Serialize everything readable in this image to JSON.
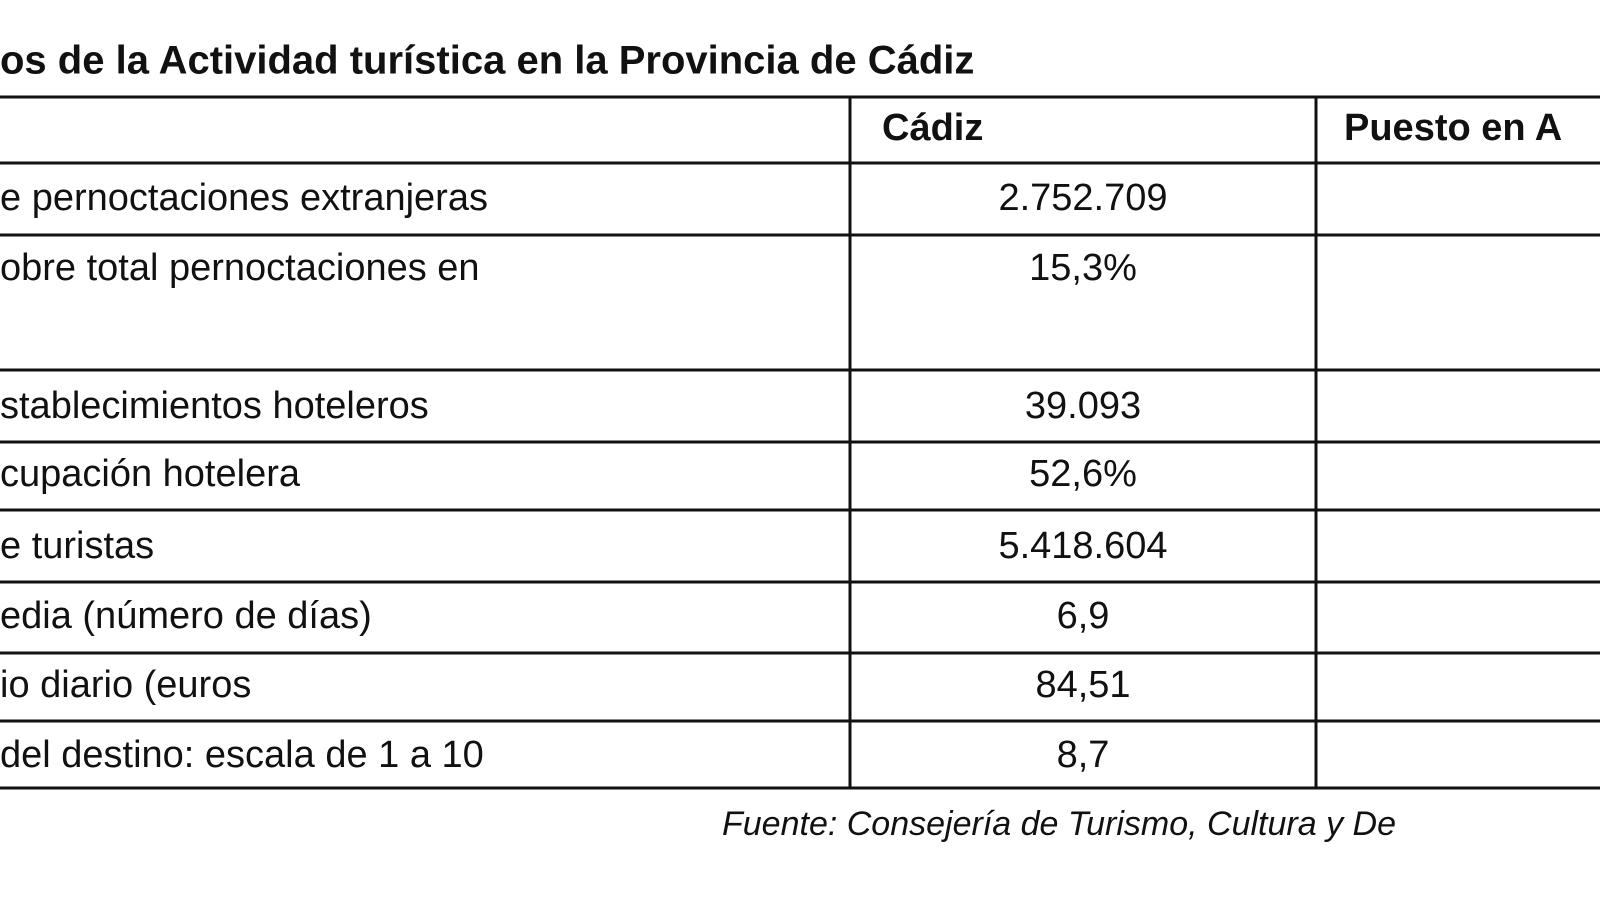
{
  "title": "os de la Actividad turística en la Provincia de Cádiz",
  "table": {
    "header": {
      "col2": "Cádiz",
      "col3": "Puesto en A"
    },
    "rows": [
      [
        "e pernoctaciones extranjeras",
        "2.752.709"
      ],
      [
        "obre total pernoctaciones en",
        "15,3%"
      ],
      [
        "stablecimientos hoteleros",
        "39.093"
      ],
      [
        "cupación hotelera",
        "52,6%"
      ],
      [
        "e turistas",
        "5.418.604"
      ],
      [
        "edia (número de días)",
        "6,9"
      ],
      [
        "io diario (euros",
        "84,51"
      ],
      [
        "del destino: escala de 1 a 10",
        "8,7"
      ]
    ]
  },
  "source": "Fuente:  Consejería de Turismo, Cultura y De"
}
